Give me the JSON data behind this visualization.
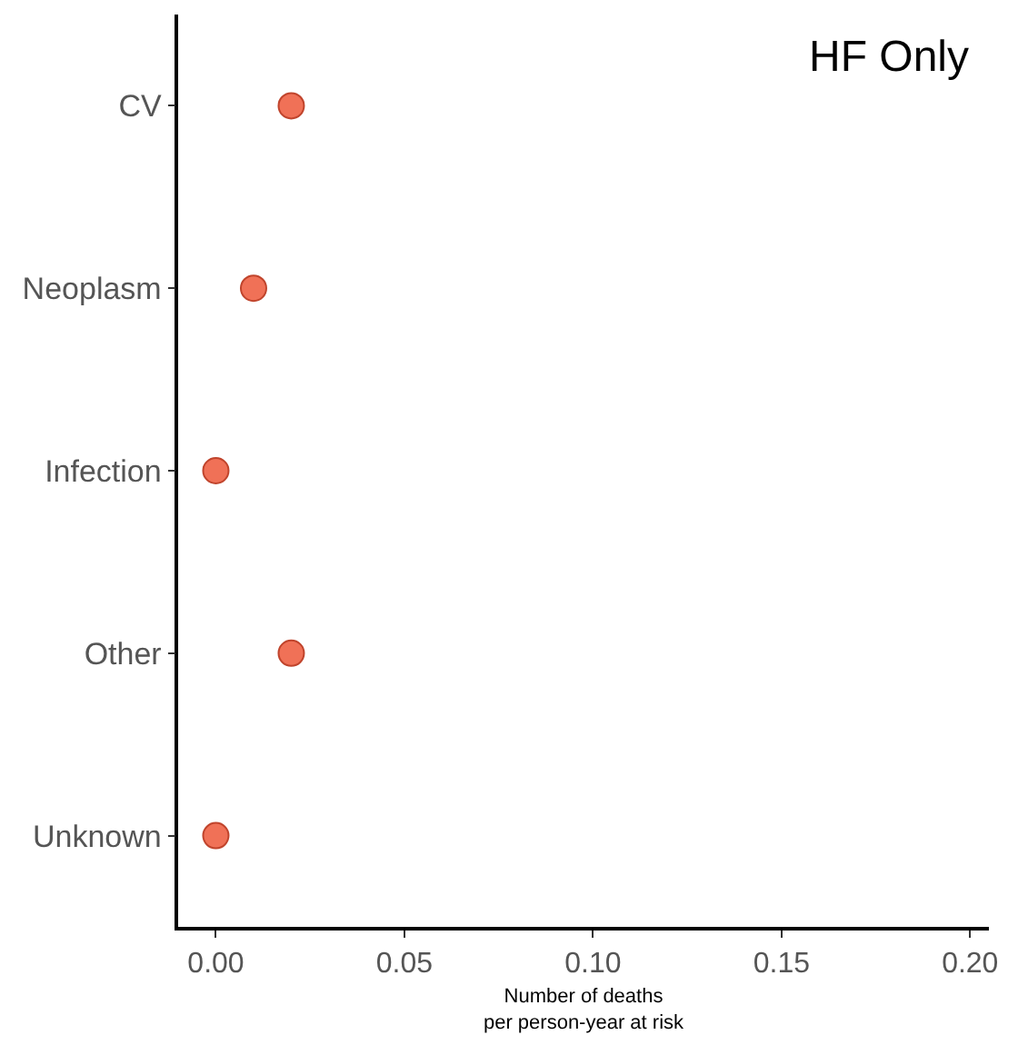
{
  "chart_data": {
    "type": "scatter",
    "title": "HF Only",
    "xlabel": "Number of deaths\nper person-year at risk",
    "orientation": "horizontal",
    "categories": [
      "CV",
      "Neoplasm",
      "Infection",
      "Other",
      "Unknown"
    ],
    "values": [
      0.02,
      0.01,
      0.0,
      0.02,
      0.0
    ],
    "color": "#f07157",
    "marker": "circle",
    "xlim": [
      -0.01,
      0.205
    ],
    "xticks": [
      {
        "value": 0,
        "label": "0.00"
      },
      0.05,
      {
        "value": 0.1,
        "label": "0.10"
      },
      0.15,
      {
        "value": 0.2,
        "label": "0.20"
      }
    ]
  }
}
